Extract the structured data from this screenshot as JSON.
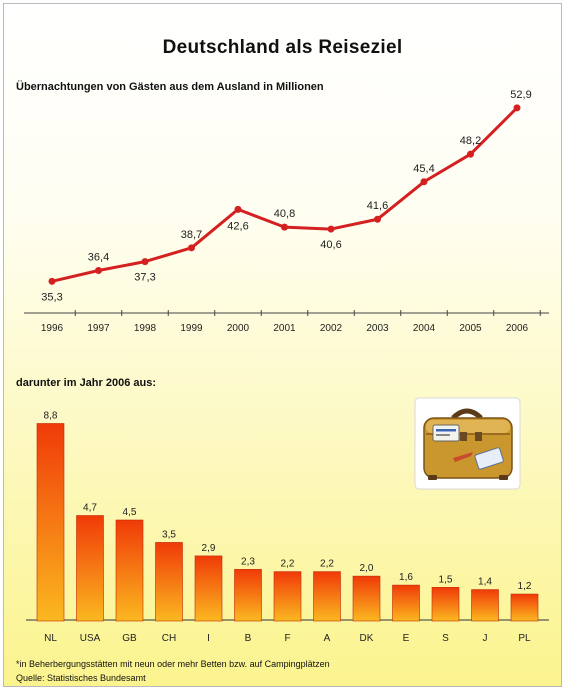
{
  "title": "Deutschland als Reiseziel",
  "subtitle_line": "Übernachtungen von Gästen aus dem Ausland in Millionen",
  "subtitle_bar": "darunter im Jahr 2006 aus:",
  "footnote": "*in Beherbergungsstätten mit neun oder mehr Betten bzw. auf Campingplätzen",
  "source": "Quelle: Statistisches Bundesamt",
  "colors": {
    "line": "#d42020",
    "bar_top": "#f03a08",
    "bar_bottom": "#fbb820",
    "background_top": "#ffffff",
    "background_bottom": "#fbf48e"
  },
  "chart_data": [
    {
      "type": "line",
      "title": "Übernachtungen von Gästen aus dem Ausland in Millionen",
      "x": [
        "1996",
        "1997",
        "1998",
        "1999",
        "2000",
        "2001",
        "2002",
        "2003",
        "2004",
        "2005",
        "2006"
      ],
      "values": [
        35.3,
        36.4,
        37.3,
        38.7,
        42.6,
        40.8,
        40.6,
        41.6,
        45.4,
        48.2,
        52.9
      ],
      "data_labels": [
        "35,3",
        "36,4",
        "37,3",
        "38,7",
        "42,6",
        "40,8",
        "40,6",
        "41,6",
        "45,4",
        "48,2",
        "52,9"
      ],
      "ylim": [
        33,
        54
      ],
      "grid": false,
      "legend": "none"
    },
    {
      "type": "bar",
      "title": "darunter im Jahr 2006 aus:",
      "categories": [
        "NL",
        "USA",
        "GB",
        "CH",
        "I",
        "B",
        "F",
        "A",
        "DK",
        "E",
        "S",
        "J",
        "PL"
      ],
      "values": [
        8.8,
        4.7,
        4.5,
        3.5,
        2.9,
        2.3,
        2.2,
        2.2,
        2.0,
        1.6,
        1.5,
        1.4,
        1.2
      ],
      "data_labels": [
        "8,8",
        "4,7",
        "4,5",
        "3,5",
        "2,9",
        "2,3",
        "2,2",
        "2,2",
        "2,0",
        "1,6",
        "1,5",
        "1,4",
        "1,2"
      ],
      "ylim": [
        0,
        9
      ],
      "grid": false,
      "legend": "none"
    }
  ]
}
